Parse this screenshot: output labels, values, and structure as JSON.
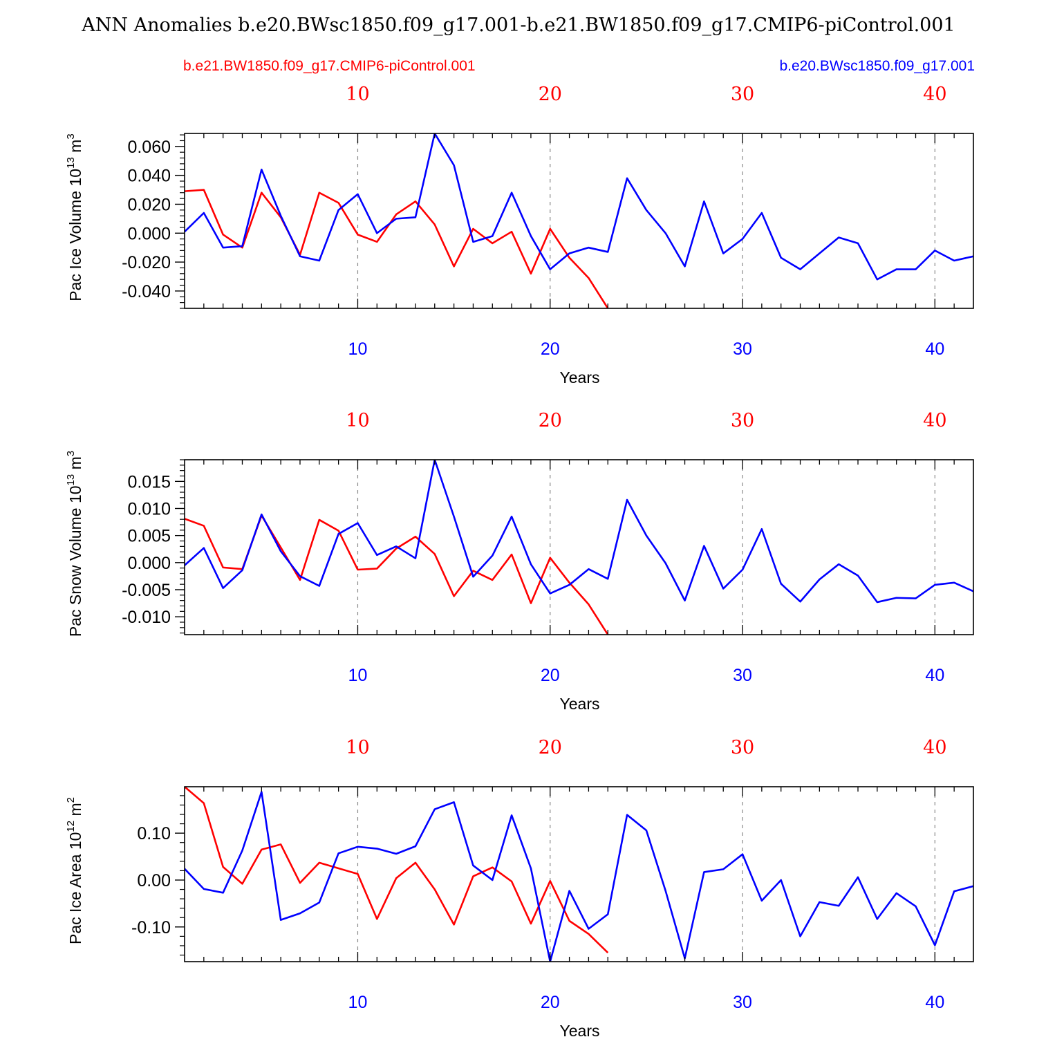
{
  "title": "ANN Anomalies b.e20.BWsc1850.f09_g17.001-b.e21.BW1850.f09_g17.CMIP6-piControl.001",
  "colors": {
    "red": "#ff0000",
    "blue": "#0000ff",
    "axis": "#000000",
    "grid": "#888888"
  },
  "legend": {
    "left": {
      "text": "b.e21.BW1850.f09_g17.CMIP6-piControl.001",
      "color": "#ff0000"
    },
    "right": {
      "text": "b.e20.BWsc1850.f09_g17.001",
      "color": "#0000ff"
    }
  },
  "chart_data": [
    {
      "type": "line",
      "ylabel": "Pac Ice Volume 10",
      "ylabel_exp": "13",
      "ylabel_unit": " m",
      "ylabel_unit_exp": "3",
      "xlabel": "Years",
      "xlim": [
        1,
        42
      ],
      "ylim": [
        -0.052,
        0.069
      ],
      "yticks": [
        -0.04,
        -0.02,
        0.0,
        0.02,
        0.04,
        0.06
      ],
      "ytick_labels": [
        "-0.040",
        "-0.020",
        "0.000",
        "0.020",
        "0.040",
        "0.060"
      ],
      "yminor_step": 0.004,
      "xticks": [
        10,
        20,
        30,
        40
      ],
      "xtick_labels_top": [
        "10",
        "20",
        "30",
        "40"
      ],
      "xtick_labels_bottom": [
        "10",
        "20",
        "30",
        "40"
      ],
      "series": [
        {
          "name": "b.e21.BW1850.f09_g17.CMIP6-piControl.001",
          "color": "#ff0000",
          "x_start": 1,
          "values": [
            0.029,
            0.03,
            -0.001,
            -0.01,
            0.028,
            0.011,
            -0.015,
            0.028,
            0.021,
            -0.001,
            -0.006,
            0.013,
            0.022,
            0.006,
            -0.023,
            0.003,
            -0.007,
            0.001,
            -0.028,
            0.003,
            -0.017,
            -0.031,
            -0.052
          ]
        },
        {
          "name": "b.e20.BWsc1850.f09_g17.001",
          "color": "#0000ff",
          "x_start": 1,
          "values": [
            0.001,
            0.014,
            -0.01,
            -0.009,
            0.044,
            0.012,
            -0.016,
            -0.019,
            0.016,
            0.027,
            0.0,
            0.01,
            0.011,
            0.069,
            0.047,
            -0.006,
            -0.002,
            0.028,
            -0.002,
            -0.025,
            -0.014,
            -0.01,
            -0.013,
            0.038,
            0.016,
            0.0,
            -0.023,
            0.022,
            -0.014,
            -0.004,
            0.014,
            -0.017,
            -0.025,
            -0.014,
            -0.003,
            -0.007,
            -0.032,
            -0.025,
            -0.025,
            -0.012,
            -0.019,
            -0.016
          ]
        }
      ]
    },
    {
      "type": "line",
      "ylabel": "Pac Snow Volume 10",
      "ylabel_exp": "13",
      "ylabel_unit": " m",
      "ylabel_unit_exp": "3",
      "xlabel": "Years",
      "xlim": [
        1,
        42
      ],
      "ylim": [
        -0.0133,
        0.019
      ],
      "yticks": [
        -0.01,
        -0.005,
        0.0,
        0.005,
        0.01,
        0.015
      ],
      "ytick_labels": [
        "-0.010",
        "-0.005",
        "0.000",
        "0.005",
        "0.010",
        "0.015"
      ],
      "yminor_step": 0.001,
      "xticks": [
        10,
        20,
        30,
        40
      ],
      "xtick_labels_top": [
        "10",
        "20",
        "30",
        "40"
      ],
      "xtick_labels_bottom": [
        "10",
        "20",
        "30",
        "40"
      ],
      "series": [
        {
          "name": "b.e21.BW1850.f09_g17.CMIP6-piControl.001",
          "color": "#ff0000",
          "x_start": 1,
          "values": [
            0.0081,
            0.0068,
            -0.0009,
            -0.0012,
            0.0087,
            0.0028,
            -0.0032,
            0.0079,
            0.0059,
            -0.0013,
            -0.0011,
            0.0026,
            0.0048,
            0.0016,
            -0.0062,
            -0.0015,
            -0.0032,
            0.0015,
            -0.0075,
            0.0009,
            -0.0037,
            -0.0077,
            -0.0133
          ]
        },
        {
          "name": "b.e20.BWsc1850.f09_g17.001",
          "color": "#0000ff",
          "x_start": 1,
          "values": [
            -0.0005,
            0.0027,
            -0.0047,
            -0.0014,
            0.0089,
            0.0021,
            -0.0025,
            -0.0043,
            0.0053,
            0.0073,
            0.0014,
            0.003,
            0.0008,
            0.019,
            0.0085,
            -0.0026,
            0.0013,
            0.0085,
            -0.0003,
            -0.0057,
            -0.0041,
            -0.0012,
            -0.003,
            0.0116,
            0.005,
            -0.0001,
            -0.007,
            0.0031,
            -0.0048,
            -0.0013,
            0.0062,
            -0.0039,
            -0.0072,
            -0.0031,
            -0.0003,
            -0.0024,
            -0.0073,
            -0.0065,
            -0.0066,
            -0.0041,
            -0.0037,
            -0.0053
          ]
        }
      ]
    },
    {
      "type": "line",
      "ylabel": "Pac Ice Area 10",
      "ylabel_exp": "12",
      "ylabel_unit": " m",
      "ylabel_unit_exp": "2",
      "xlabel": "Years",
      "xlim": [
        1,
        42
      ],
      "ylim": [
        -0.174,
        0.199
      ],
      "yticks": [
        -0.1,
        0.0,
        0.1
      ],
      "ytick_labels": [
        "-0.10",
        "0.00",
        "0.10"
      ],
      "yminor_step": 0.02,
      "xticks": [
        10,
        20,
        30,
        40
      ],
      "xtick_labels_top": [
        "10",
        "20",
        "30",
        "40"
      ],
      "xtick_labels_bottom": [
        "10",
        "20",
        "30",
        "40"
      ],
      "series": [
        {
          "name": "b.e21.BW1850.f09_g17.CMIP6-piControl.001",
          "color": "#ff0000",
          "x_start": 1,
          "values": [
            0.199,
            0.164,
            0.028,
            -0.008,
            0.065,
            0.076,
            -0.006,
            0.037,
            0.025,
            0.013,
            -0.083,
            0.004,
            0.037,
            -0.02,
            -0.095,
            0.008,
            0.027,
            -0.003,
            -0.093,
            -0.002,
            -0.087,
            -0.115,
            -0.155
          ]
        },
        {
          "name": "b.e20.BWsc1850.f09_g17.001",
          "color": "#0000ff",
          "x_start": 1,
          "values": [
            0.024,
            -0.019,
            -0.027,
            0.063,
            0.188,
            -0.085,
            -0.071,
            -0.048,
            0.057,
            0.071,
            0.067,
            0.056,
            0.072,
            0.151,
            0.166,
            0.031,
            0.0,
            0.138,
            0.025,
            -0.174,
            -0.023,
            -0.104,
            -0.073,
            0.139,
            0.106,
            -0.023,
            -0.167,
            0.017,
            0.023,
            0.055,
            -0.044,
            0.0,
            -0.12,
            -0.047,
            -0.055,
            0.006,
            -0.083,
            -0.028,
            -0.056,
            -0.139,
            -0.024,
            -0.013
          ]
        }
      ]
    }
  ]
}
